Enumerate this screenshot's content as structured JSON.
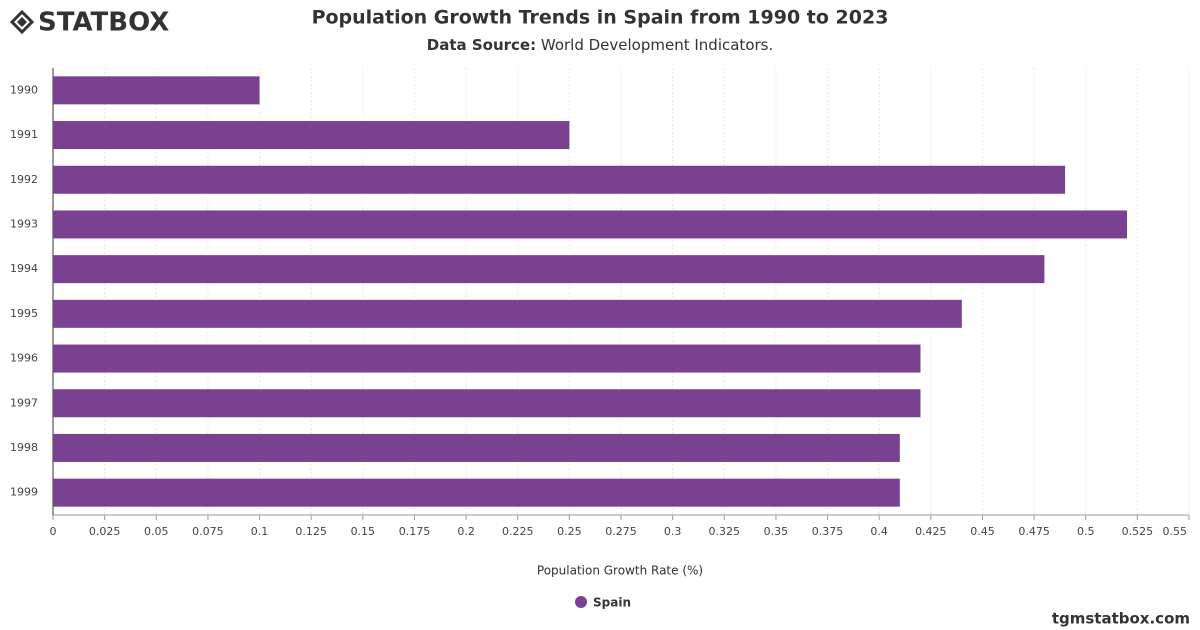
{
  "logo": "STATBOX",
  "footer": "tgmstatbox.com",
  "chart_data": {
    "type": "hbar",
    "title": "Population Growth Trends in Spain from 1990 to 2023",
    "subtitle_label": "Data Source:",
    "subtitle": "World Development Indicators.",
    "x_label": "Population Growth Rate (%)",
    "categories": [
      "1990",
      "1991",
      "1992",
      "1993",
      "1994",
      "1995",
      "1996",
      "1997",
      "1998",
      "1999"
    ],
    "series": [
      {
        "name": "Spain",
        "color": "#7a4190",
        "values": [
          0.1,
          0.25,
          0.49,
          0.52,
          0.48,
          0.44,
          0.42,
          0.42,
          0.41,
          0.41
        ]
      }
    ],
    "xlim": [
      0,
      0.55
    ],
    "xticks": [
      0,
      0.025,
      0.05,
      0.075,
      0.1,
      0.125,
      0.15,
      0.175,
      0.2,
      0.225,
      0.25,
      0.275,
      0.3,
      0.325,
      0.35,
      0.375,
      0.4,
      0.425,
      0.45,
      0.475,
      0.5,
      0.525,
      0.55
    ],
    "grid": true,
    "legend": "bottom"
  }
}
